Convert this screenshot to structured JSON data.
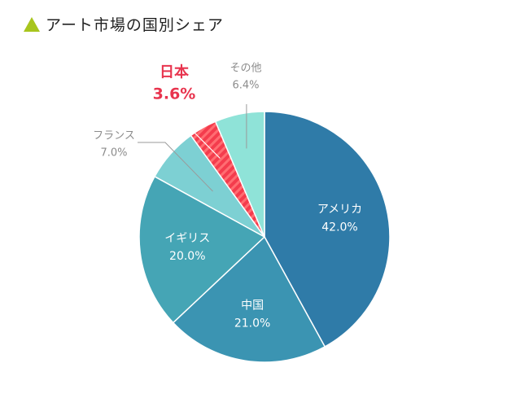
{
  "colors": {
    "title_icon": "#a8c51d",
    "highlight_label": "#e8344e",
    "outside_label": "#8c8c8c",
    "slice_border": "#ffffff",
    "hatch_stripe": "#ff6d72"
  },
  "chart_data": {
    "type": "pie",
    "title": "アート市場の国別シェア",
    "unit": "%",
    "slices": [
      {
        "label": "アメリカ",
        "value_label": "42.0%",
        "value": 42.0,
        "color": "#2f7ba8",
        "label_position": "inside"
      },
      {
        "label": "中国",
        "value_label": "21.0%",
        "value": 21.0,
        "color": "#3b94b2",
        "label_position": "inside"
      },
      {
        "label": "イギリス",
        "value_label": "20.0%",
        "value": 20.0,
        "color": "#45a5b5",
        "label_position": "inside"
      },
      {
        "label": "フランス",
        "value_label": "7.0%",
        "value": 7.0,
        "color": "#7dd0d3",
        "label_position": "outside-left"
      },
      {
        "label": "日本",
        "value_label": "3.6%",
        "value": 3.6,
        "color": "#f43c4d",
        "label_position": "outside-top",
        "highlighted": true,
        "pattern": "hatched"
      },
      {
        "label": "その他",
        "value_label": "6.4%",
        "value": 6.4,
        "color": "#8fe3d8",
        "label_position": "outside-top"
      }
    ]
  }
}
